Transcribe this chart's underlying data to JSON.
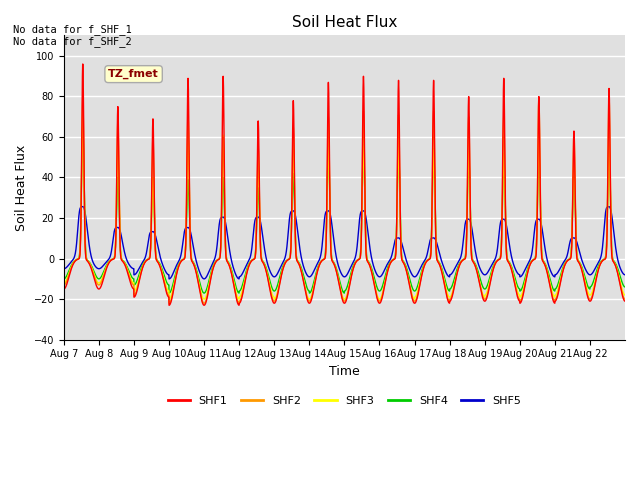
{
  "title": "Soil Heat Flux",
  "xlabel": "Time",
  "ylabel": "Soil Heat Flux",
  "ylim": [
    -40,
    110
  ],
  "yticks": [
    -40,
    -20,
    0,
    20,
    40,
    60,
    80,
    100
  ],
  "background_color": "#ffffff",
  "plot_bg_color": "#e0e0e0",
  "grid_color": "#ffffff",
  "annotation_top_left": "No data for f_SHF_1\nNo data for f_SHF_2",
  "legend_box_text": "TZ_fmet",
  "legend_box_bg": "#ffffcc",
  "legend_box_border": "#aaaaaa",
  "series_colors": [
    "#ff0000",
    "#ff9900",
    "#ffff00",
    "#00cc00",
    "#0000cc"
  ],
  "series_names": [
    "SHF1",
    "SHF2",
    "SHF3",
    "SHF4",
    "SHF5"
  ],
  "num_days": 16,
  "x_tick_labels": [
    "Aug 7",
    "Aug 8",
    "Aug 9",
    "Aug 10",
    "Aug 11",
    "Aug 12",
    "Aug 13",
    "Aug 14",
    "Aug 15",
    "Aug 16",
    "Aug 17",
    "Aug 18",
    "Aug 19",
    "Aug 20",
    "Aug 21",
    "Aug 22"
  ],
  "day_peaks_shf1": [
    96,
    75,
    69,
    89,
    90,
    68,
    78,
    87,
    90,
    88,
    88,
    80,
    89,
    80,
    63,
    84
  ],
  "day_peaks_shf2": [
    80,
    68,
    60,
    71,
    60,
    55,
    65,
    70,
    73,
    71,
    73,
    70,
    70,
    79,
    62,
    80
  ],
  "day_peaks_shf3": [
    65,
    55,
    40,
    60,
    61,
    47,
    55,
    55,
    56,
    55,
    54,
    53,
    52,
    58,
    47,
    56
  ],
  "day_peaks_shf4": [
    65,
    40,
    39,
    39,
    40,
    35,
    42,
    55,
    56,
    55,
    54,
    52,
    50,
    52,
    42,
    55
  ],
  "day_peaks_shf5": [
    25,
    15,
    13,
    15,
    20,
    20,
    23,
    23,
    23,
    10,
    10,
    19,
    19,
    19,
    10,
    25
  ],
  "night_troughs_shf1": [
    -15,
    -15,
    -19,
    -23,
    -23,
    -22,
    -22,
    -22,
    -22,
    -22,
    -22,
    -21,
    -21,
    -22,
    -21,
    -21
  ],
  "night_troughs_shf2": [
    -13,
    -13,
    -18,
    -22,
    -22,
    -21,
    -21,
    -21,
    -21,
    -21,
    -21,
    -20,
    -20,
    -21,
    -20,
    -20
  ],
  "night_troughs_shf3": [
    -12,
    -12,
    -16,
    -20,
    -20,
    -19,
    -20,
    -20,
    -20,
    -20,
    -19,
    -19,
    -18,
    -19,
    -18,
    -18
  ],
  "night_troughs_shf4": [
    -10,
    -10,
    -13,
    -17,
    -17,
    -16,
    -16,
    -17,
    -16,
    -16,
    -16,
    -15,
    -15,
    -16,
    -15,
    -14
  ],
  "night_troughs_shf5": [
    -5,
    -5,
    -8,
    -10,
    -10,
    -9,
    -9,
    -9,
    -9,
    -9,
    -9,
    -8,
    -8,
    -9,
    -8,
    -8
  ]
}
